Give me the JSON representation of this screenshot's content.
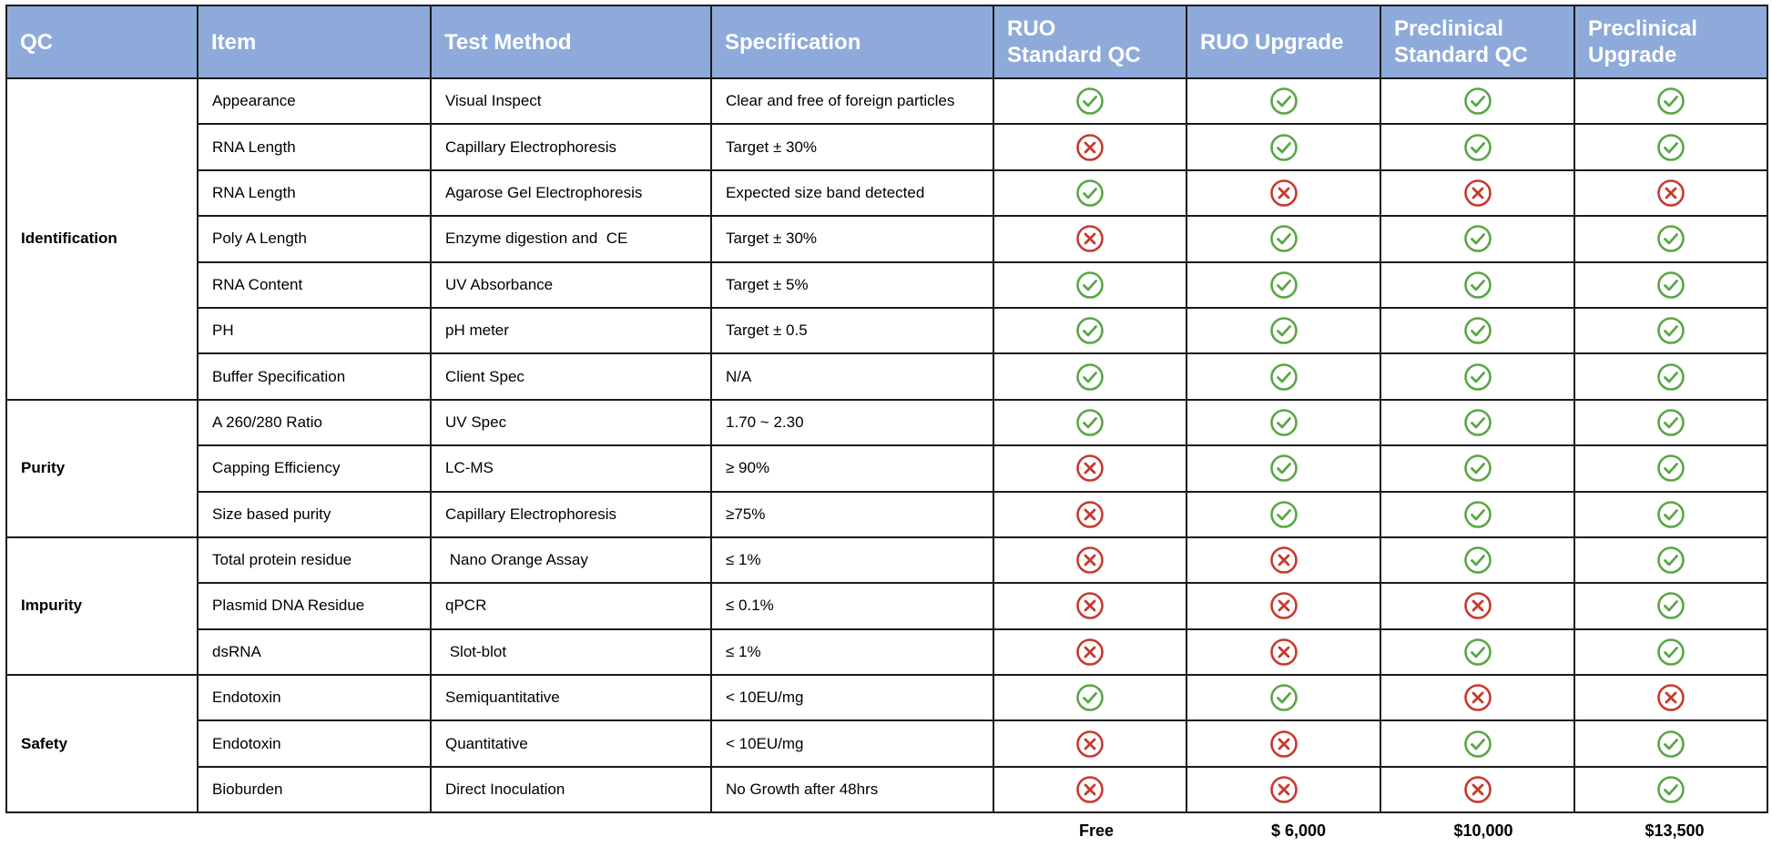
{
  "table": {
    "headers": {
      "qc": "QC",
      "item": "Item",
      "method": "Test Method",
      "spec": "Specification",
      "tiers": [
        "RUO\nStandard  QC",
        "RUO Upgrade",
        "Preclinical\nStandard QC",
        "Preclinical\nUpgrade"
      ]
    },
    "groups": [
      {
        "name": "Identification",
        "rows": [
          {
            "item": "Appearance",
            "method": "Visual Inspect",
            "spec": "Clear and free of foreign particles",
            "marks": [
              "check",
              "check",
              "check",
              "check"
            ]
          },
          {
            "item": "RNA Length",
            "method": "Capillary Electrophoresis",
            "spec": "Target ± 30%",
            "marks": [
              "cross",
              "check",
              "check",
              "check"
            ]
          },
          {
            "item": "RNA Length",
            "method": "Agarose Gel Electrophoresis",
            "spec": "Expected size band detected",
            "marks": [
              "check",
              "cross",
              "cross",
              "cross"
            ]
          },
          {
            "item": "Poly A Length",
            "method": "Enzyme digestion and  CE",
            "spec": "Target ± 30%",
            "marks": [
              "cross",
              "check",
              "check",
              "check"
            ]
          },
          {
            "item": "RNA Content",
            "method": "UV Absorbance",
            "spec": "Target ± 5%",
            "marks": [
              "check",
              "check",
              "check",
              "check"
            ]
          },
          {
            "item": "PH",
            "method": "pH meter",
            "spec": "Target ± 0.5",
            "marks": [
              "check",
              "check",
              "check",
              "check"
            ]
          },
          {
            "item": "Buffer Specification",
            "method": "Client Spec",
            "spec": "N/A",
            "marks": [
              "check",
              "check",
              "check",
              "check"
            ]
          }
        ]
      },
      {
        "name": "Purity",
        "rows": [
          {
            "item": "A 260/280 Ratio",
            "method": "UV Spec",
            "spec": "1.70 ~ 2.30",
            "marks": [
              "check",
              "check",
              "check",
              "check"
            ]
          },
          {
            "item": "Capping Efficiency",
            "method": "LC-MS",
            "spec": "≥ 90%",
            "marks": [
              "cross",
              "check",
              "check",
              "check"
            ]
          },
          {
            "item": "Size based purity",
            "method": "Capillary Electrophoresis",
            "spec": "≥75%",
            "marks": [
              "cross",
              "check",
              "check",
              "check"
            ]
          }
        ]
      },
      {
        "name": "Impurity",
        "rows": [
          {
            "item": "Total protein residue",
            "method": " Nano Orange Assay",
            "spec": "≤ 1%",
            "marks": [
              "cross",
              "cross",
              "check",
              "check"
            ]
          },
          {
            "item": "Plasmid DNA Residue",
            "method": "qPCR",
            "spec": "≤ 0.1%",
            "marks": [
              "cross",
              "cross",
              "cross",
              "check"
            ]
          },
          {
            "item": "dsRNA",
            "method": " Slot-blot",
            "spec": "≤ 1%",
            "marks": [
              "cross",
              "cross",
              "check",
              "check"
            ]
          }
        ]
      },
      {
        "name": "Safety",
        "rows": [
          {
            "item": "Endotoxin",
            "method": "Semiquantitative",
            "spec": "< 10EU/mg",
            "marks": [
              "check",
              "check",
              "cross",
              "cross"
            ]
          },
          {
            "item": "Endotoxin",
            "method": "Quantitative",
            "spec": "< 10EU/mg",
            "marks": [
              "cross",
              "cross",
              "check",
              "check"
            ]
          },
          {
            "item": "Bioburden",
            "method": "Direct Inoculation",
            "spec": "No Growth after 48hrs",
            "marks": [
              "cross",
              "cross",
              "cross",
              "check"
            ]
          }
        ]
      }
    ],
    "prices": [
      "Free",
      "$ 6,000",
      "$10,000",
      "$13,500"
    ]
  },
  "colors": {
    "header_bg": "#8eaadb",
    "check": "#5aa645",
    "cross": "#c8392e"
  },
  "icons": {
    "check": "check-circle-icon",
    "cross": "x-circle-icon"
  }
}
